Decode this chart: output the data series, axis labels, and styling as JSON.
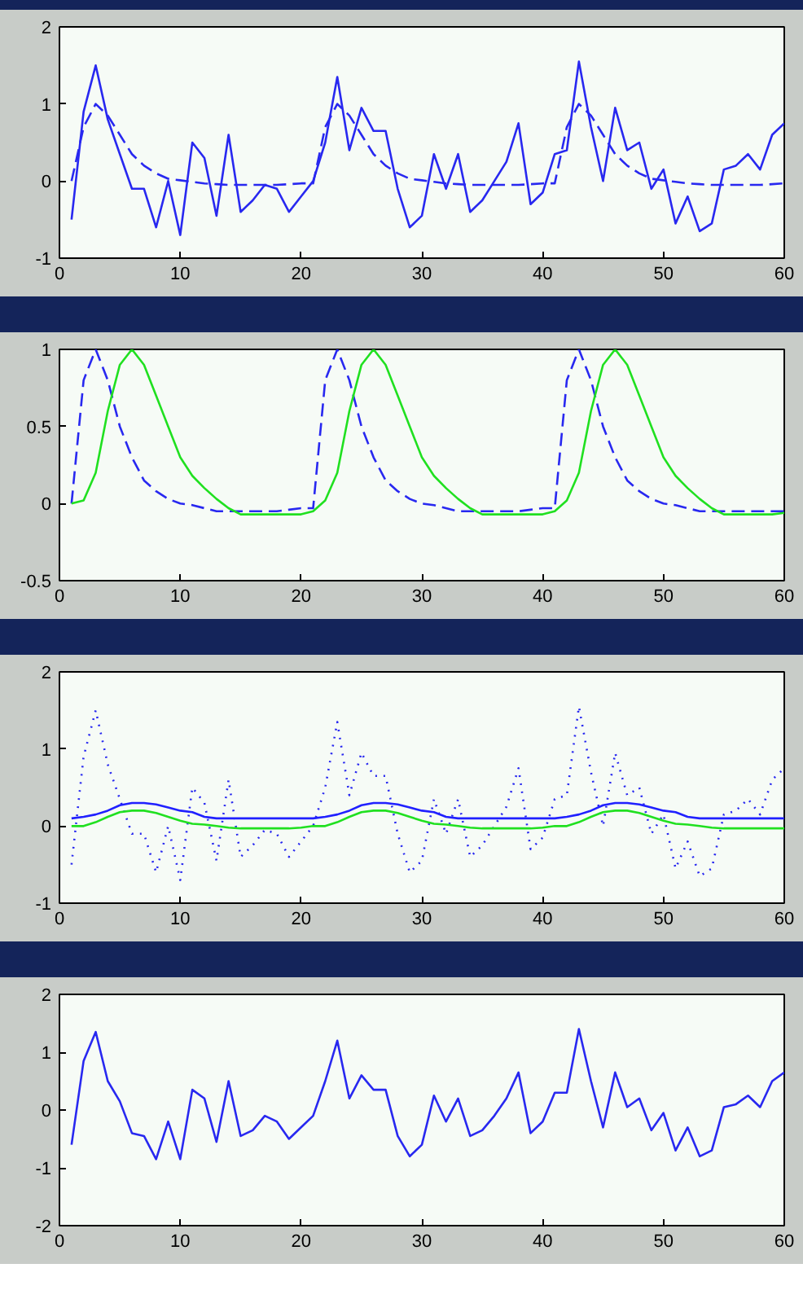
{
  "chart_data": [
    {
      "type": "line",
      "x": [
        1,
        2,
        3,
        4,
        5,
        6,
        7,
        8,
        9,
        10,
        11,
        12,
        13,
        14,
        15,
        16,
        17,
        18,
        19,
        20,
        21,
        22,
        23,
        24,
        25,
        26,
        27,
        28,
        29,
        30,
        31,
        32,
        33,
        34,
        35,
        36,
        37,
        38,
        39,
        40,
        41,
        42,
        43,
        44,
        45,
        46,
        47,
        48,
        49,
        50,
        51,
        52,
        53,
        54,
        55,
        56,
        57,
        58,
        59,
        60
      ],
      "xlim": [
        0,
        60
      ],
      "ylim": [
        -1,
        2
      ],
      "xticks": [
        0,
        10,
        20,
        30,
        40,
        50,
        60
      ],
      "yticks": [
        -1,
        0,
        1,
        2
      ],
      "grid": false,
      "series": [
        {
          "color": "#2828f0",
          "line_style": "solid",
          "values": [
            -0.5,
            0.9,
            1.5,
            0.8,
            0.35,
            -0.1,
            -0.1,
            -0.6,
            0.0,
            -0.7,
            0.5,
            0.3,
            -0.45,
            0.6,
            -0.4,
            -0.25,
            -0.05,
            -0.1,
            -0.4,
            -0.2,
            0.0,
            0.5,
            1.35,
            0.4,
            0.95,
            0.65,
            0.65,
            -0.1,
            -0.6,
            -0.45,
            0.35,
            -0.1,
            0.35,
            -0.4,
            -0.25,
            0.0,
            0.25,
            0.75,
            -0.3,
            -0.15,
            0.35,
            0.4,
            1.55,
            0.7,
            0.0,
            0.95,
            0.4,
            0.5,
            -0.1,
            0.15,
            -0.55,
            -0.2,
            -0.65,
            -0.55,
            0.15,
            0.2,
            0.35,
            0.15,
            0.6,
            0.75
          ]
        },
        {
          "color": "#2828f0",
          "line_style": "dashed",
          "values": [
            0,
            0.7,
            1.0,
            0.85,
            0.6,
            0.35,
            0.2,
            0.1,
            0.03,
            0.01,
            -0.01,
            -0.03,
            -0.04,
            -0.05,
            -0.05,
            -0.05,
            -0.05,
            -0.05,
            -0.04,
            -0.03,
            -0.03,
            0.7,
            1.0,
            0.85,
            0.6,
            0.35,
            0.2,
            0.1,
            0.03,
            0.01,
            -0.01,
            -0.03,
            -0.04,
            -0.05,
            -0.05,
            -0.05,
            -0.05,
            -0.05,
            -0.04,
            -0.03,
            -0.03,
            0.7,
            1.0,
            0.85,
            0.6,
            0.35,
            0.2,
            0.1,
            0.03,
            0.01,
            -0.01,
            -0.03,
            -0.04,
            -0.05,
            -0.05,
            -0.05,
            -0.05,
            -0.05,
            -0.04,
            -0.03
          ]
        }
      ]
    },
    {
      "type": "line",
      "x": [
        1,
        2,
        3,
        4,
        5,
        6,
        7,
        8,
        9,
        10,
        11,
        12,
        13,
        14,
        15,
        16,
        17,
        18,
        19,
        20,
        21,
        22,
        23,
        24,
        25,
        26,
        27,
        28,
        29,
        30,
        31,
        32,
        33,
        34,
        35,
        36,
        37,
        38,
        39,
        40,
        41,
        42,
        43,
        44,
        45,
        46,
        47,
        48,
        49,
        50,
        51,
        52,
        53,
        54,
        55,
        56,
        57,
        58,
        59,
        60
      ],
      "xlim": [
        0,
        60
      ],
      "ylim": [
        -0.5,
        1
      ],
      "xticks": [
        0,
        10,
        20,
        30,
        40,
        50,
        60
      ],
      "yticks": [
        -0.5,
        0,
        0.5,
        1
      ],
      "grid": false,
      "series": [
        {
          "color": "#2828f0",
          "line_style": "dashed",
          "values": [
            0,
            0.8,
            1.0,
            0.8,
            0.5,
            0.3,
            0.15,
            0.08,
            0.03,
            0.0,
            -0.01,
            -0.03,
            -0.05,
            -0.05,
            -0.05,
            -0.05,
            -0.05,
            -0.05,
            -0.04,
            -0.03,
            -0.03,
            0.8,
            1.0,
            0.8,
            0.5,
            0.3,
            0.15,
            0.08,
            0.03,
            0.0,
            -0.01,
            -0.03,
            -0.05,
            -0.05,
            -0.05,
            -0.05,
            -0.05,
            -0.05,
            -0.04,
            -0.03,
            -0.03,
            0.8,
            1.0,
            0.8,
            0.5,
            0.3,
            0.15,
            0.08,
            0.03,
            0.0,
            -0.01,
            -0.03,
            -0.05,
            -0.05,
            -0.05,
            -0.05,
            -0.05,
            -0.05,
            -0.05,
            -0.05
          ]
        },
        {
          "color": "#20e020",
          "line_style": "solid",
          "values": [
            0,
            0.02,
            0.2,
            0.6,
            0.9,
            1.0,
            0.9,
            0.7,
            0.5,
            0.3,
            0.18,
            0.1,
            0.03,
            -0.03,
            -0.07,
            -0.07,
            -0.07,
            -0.07,
            -0.07,
            -0.07,
            -0.05,
            0.02,
            0.2,
            0.6,
            0.9,
            1.0,
            0.9,
            0.7,
            0.5,
            0.3,
            0.18,
            0.1,
            0.03,
            -0.03,
            -0.07,
            -0.07,
            -0.07,
            -0.07,
            -0.07,
            -0.07,
            -0.05,
            0.02,
            0.2,
            0.6,
            0.9,
            1.0,
            0.9,
            0.7,
            0.5,
            0.3,
            0.18,
            0.1,
            0.03,
            -0.03,
            -0.07,
            -0.07,
            -0.07,
            -0.07,
            -0.07,
            -0.06
          ]
        }
      ]
    },
    {
      "type": "line",
      "x": [
        1,
        2,
        3,
        4,
        5,
        6,
        7,
        8,
        9,
        10,
        11,
        12,
        13,
        14,
        15,
        16,
        17,
        18,
        19,
        20,
        21,
        22,
        23,
        24,
        25,
        26,
        27,
        28,
        29,
        30,
        31,
        32,
        33,
        34,
        35,
        36,
        37,
        38,
        39,
        40,
        41,
        42,
        43,
        44,
        45,
        46,
        47,
        48,
        49,
        50,
        51,
        52,
        53,
        54,
        55,
        56,
        57,
        58,
        59,
        60
      ],
      "xlim": [
        0,
        60
      ],
      "ylim": [
        -1,
        2
      ],
      "xticks": [
        0,
        10,
        20,
        30,
        40,
        50,
        60
      ],
      "yticks": [
        -1,
        0,
        1,
        2
      ],
      "grid": false,
      "series": [
        {
          "color": "#2828f0",
          "line_style": "dotted",
          "values": [
            -0.5,
            0.9,
            1.5,
            0.8,
            0.35,
            -0.1,
            -0.1,
            -0.6,
            0.0,
            -0.7,
            0.5,
            0.3,
            -0.45,
            0.6,
            -0.4,
            -0.25,
            -0.05,
            -0.1,
            -0.4,
            -0.2,
            0.0,
            0.5,
            1.35,
            0.4,
            0.95,
            0.65,
            0.65,
            -0.1,
            -0.6,
            -0.45,
            0.35,
            -0.1,
            0.35,
            -0.4,
            -0.25,
            0.0,
            0.25,
            0.75,
            -0.3,
            -0.15,
            0.35,
            0.4,
            1.55,
            0.7,
            0.0,
            0.95,
            0.4,
            0.5,
            -0.1,
            0.15,
            -0.55,
            -0.2,
            -0.65,
            -0.55,
            0.15,
            0.2,
            0.35,
            0.15,
            0.6,
            0.75
          ]
        },
        {
          "color": "#2020ff",
          "line_style": "solid",
          "values": [
            0.1,
            0.12,
            0.15,
            0.2,
            0.27,
            0.3,
            0.3,
            0.28,
            0.24,
            0.2,
            0.18,
            0.12,
            0.1,
            0.1,
            0.1,
            0.1,
            0.1,
            0.1,
            0.1,
            0.1,
            0.1,
            0.12,
            0.15,
            0.2,
            0.27,
            0.3,
            0.3,
            0.28,
            0.24,
            0.2,
            0.18,
            0.12,
            0.1,
            0.1,
            0.1,
            0.1,
            0.1,
            0.1,
            0.1,
            0.1,
            0.1,
            0.12,
            0.15,
            0.2,
            0.27,
            0.3,
            0.3,
            0.28,
            0.24,
            0.2,
            0.18,
            0.12,
            0.1,
            0.1,
            0.1,
            0.1,
            0.1,
            0.1,
            0.1,
            0.1
          ]
        },
        {
          "color": "#20e020",
          "line_style": "solid",
          "values": [
            0,
            0,
            0.05,
            0.12,
            0.18,
            0.2,
            0.2,
            0.17,
            0.12,
            0.07,
            0.03,
            0.02,
            0.0,
            -0.02,
            -0.03,
            -0.03,
            -0.03,
            -0.03,
            -0.03,
            -0.02,
            0,
            0,
            0.05,
            0.12,
            0.18,
            0.2,
            0.2,
            0.17,
            0.12,
            0.07,
            0.03,
            0.02,
            0.0,
            -0.02,
            -0.03,
            -0.03,
            -0.03,
            -0.03,
            -0.03,
            -0.02,
            0,
            0,
            0.05,
            0.12,
            0.18,
            0.2,
            0.2,
            0.17,
            0.12,
            0.07,
            0.03,
            0.02,
            0.0,
            -0.02,
            -0.03,
            -0.03,
            -0.03,
            -0.03,
            -0.03,
            -0.03
          ]
        }
      ]
    },
    {
      "type": "line",
      "x": [
        1,
        2,
        3,
        4,
        5,
        6,
        7,
        8,
        9,
        10,
        11,
        12,
        13,
        14,
        15,
        16,
        17,
        18,
        19,
        20,
        21,
        22,
        23,
        24,
        25,
        26,
        27,
        28,
        29,
        30,
        31,
        32,
        33,
        34,
        35,
        36,
        37,
        38,
        39,
        40,
        41,
        42,
        43,
        44,
        45,
        46,
        47,
        48,
        49,
        50,
        51,
        52,
        53,
        54,
        55,
        56,
        57,
        58,
        59,
        60
      ],
      "xlim": [
        0,
        60
      ],
      "ylim": [
        -2,
        2
      ],
      "xticks": [
        0,
        10,
        20,
        30,
        40,
        50,
        60
      ],
      "yticks": [
        -2,
        -1,
        0,
        1,
        2
      ],
      "grid": false,
      "series": [
        {
          "color": "#2828f0",
          "line_style": "solid",
          "values": [
            -0.6,
            0.85,
            1.35,
            0.5,
            0.15,
            -0.4,
            -0.45,
            -0.85,
            -0.2,
            -0.85,
            0.35,
            0.2,
            -0.55,
            0.5,
            -0.45,
            -0.35,
            -0.1,
            -0.2,
            -0.5,
            -0.3,
            -0.1,
            0.5,
            1.2,
            0.2,
            0.6,
            0.35,
            0.35,
            -0.45,
            -0.8,
            -0.6,
            0.25,
            -0.2,
            0.2,
            -0.45,
            -0.35,
            -0.1,
            0.2,
            0.65,
            -0.4,
            -0.2,
            0.3,
            0.3,
            1.4,
            0.5,
            -0.3,
            0.65,
            0.05,
            0.2,
            -0.35,
            -0.05,
            -0.7,
            -0.3,
            -0.8,
            -0.7,
            0.05,
            0.1,
            0.25,
            0.05,
            0.5,
            0.65
          ]
        }
      ]
    }
  ]
}
